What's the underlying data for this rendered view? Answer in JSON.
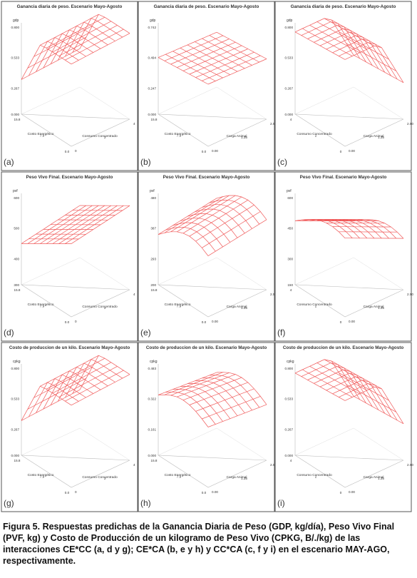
{
  "figure": {
    "panels": [
      {
        "label": "(a)",
        "title": "Ganancia diaria de peso. Escenario Mayo-Agosto",
        "z_axis_label": "gdp",
        "z_ticks": [
          "0.800",
          "0.533",
          "0.267",
          "0.000"
        ],
        "x_axis_label": "Costo Energético",
        "x_ticks": [
          "15.8",
          "7.9",
          "0.0"
        ],
        "y_axis_label": "Consumo Concentrado",
        "y_ticks": [
          "0",
          "2",
          "4"
        ]
      },
      {
        "label": "(b)",
        "title": "Ganancia diaria de peso. Escenario Mayo-Agosto",
        "z_axis_label": "gdp",
        "z_ticks": [
          "0.742",
          "0.494",
          "0.247",
          "0.000"
        ],
        "x_axis_label": "Costo Energético",
        "x_ticks": [
          "15.8",
          "7.9",
          "0.0"
        ],
        "y_axis_label": "Carga Animal",
        "y_ticks": [
          "0.00",
          "1.25",
          "2.50"
        ]
      },
      {
        "label": "(c)",
        "title": "Ganancia diaria de peso. Escenario Mayo-Agosto",
        "z_axis_label": "gdp",
        "z_ticks": [
          "0.800",
          "0.533",
          "0.267",
          "0.000"
        ],
        "x_axis_label": "Consumo Concentrado",
        "x_ticks": [
          "4",
          "2",
          "0"
        ],
        "y_axis_label": "Carga Animal",
        "y_ticks": [
          "0.00",
          "1.25",
          "2.50"
        ]
      },
      {
        "label": "(d)",
        "title": "Peso Vivo Final. Escenario Mayo-Agosto",
        "z_axis_label": "pvf",
        "z_ticks": [
          "600",
          "500",
          "400",
          "300"
        ],
        "x_axis_label": "Costo Energético",
        "x_ticks": [
          "15.8",
          "7.9",
          "0.0"
        ],
        "y_axis_label": "Consumo Concentrado",
        "y_ticks": [
          "0",
          "2",
          "4"
        ]
      },
      {
        "label": "(e)",
        "title": "Peso Vivo Final. Escenario Mayo-Agosto",
        "z_axis_label": "pvf",
        "z_ticks": [
          "480",
          "387",
          "293",
          "200"
        ],
        "x_axis_label": "Costo Energético",
        "x_ticks": [
          "15.8",
          "7.9",
          "0.0"
        ],
        "y_axis_label": "Carga Animal",
        "y_ticks": [
          "0.00",
          "1.25",
          "2.50"
        ]
      },
      {
        "label": "(f)",
        "title": "Peso Vivo Final. Escenario Mayo-Agosto",
        "z_axis_label": "pvf",
        "z_ticks": [
          "600",
          "450",
          "300",
          "150"
        ],
        "x_axis_label": "Consumo Concentrado",
        "x_ticks": [
          "4",
          "2",
          "0"
        ],
        "y_axis_label": "Carga Animal",
        "y_ticks": [
          "0.00",
          "1.25",
          "2.50"
        ]
      },
      {
        "label": "(g)",
        "title": "Costo de produccion de un kilo. Escenario Mayo-Agosto",
        "z_axis_label": "cpkg",
        "z_ticks": [
          "0.800",
          "0.533",
          "0.267",
          "0.000"
        ],
        "x_axis_label": "Costo Energético",
        "x_ticks": [
          "15.8",
          "7.9",
          "0.0"
        ],
        "y_axis_label": "Consumo Concentrado",
        "y_ticks": [
          "0",
          "2",
          "4"
        ]
      },
      {
        "label": "(h)",
        "title": "Costo de produccion de un kilo. Escenario Mayo-Agosto",
        "z_axis_label": "cpkg",
        "z_ticks": [
          "0.483",
          "0.322",
          "0.161",
          "0.000"
        ],
        "x_axis_label": "Costo Energético",
        "x_ticks": [
          "15.8",
          "7.9",
          "0.0"
        ],
        "y_axis_label": "Carga Animal",
        "y_ticks": [
          "0.00",
          "1.25",
          "2.50"
        ]
      },
      {
        "label": "(i)",
        "title": "Costo de produccion de un kilo. Escenario Mayo-Agosto",
        "z_axis_label": "cpkg",
        "z_ticks": [
          "0.800",
          "0.533",
          "0.267",
          "0.000"
        ],
        "x_axis_label": "Consumo Concentrado",
        "x_ticks": [
          "4",
          "2",
          "0"
        ],
        "y_axis_label": "Carga Animal",
        "y_ticks": [
          "0.00",
          "1.25",
          "2.50"
        ]
      }
    ],
    "caption": "Figura 5. Respuestas predichas de la Ganancia Diaria de Peso (GDP, kg/día), Peso Vivo Final (PVF, kg) y Costo de Producción de un kilogramo de Peso Vivo (CPKG, B/./kg) de las interacciones CE*CC (a, d y g); CE*CA (b, e y h) y CC*CA (c, f y i) en el escenario MAY-AGO, respectivamente."
  }
}
